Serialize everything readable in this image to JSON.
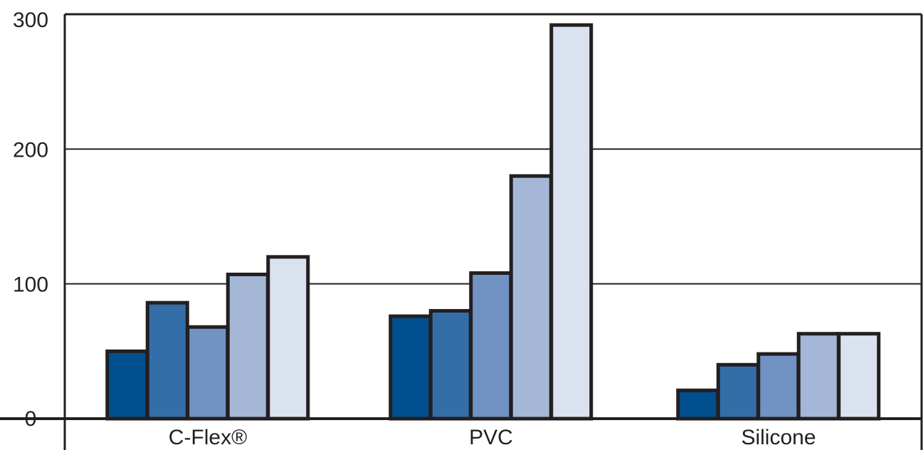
{
  "chart_data": {
    "type": "bar",
    "title": "",
    "xlabel": "",
    "ylabel": "",
    "categories": [
      "C-Flex®",
      "PVC",
      "Silicone"
    ],
    "ylim": [
      0,
      300
    ],
    "yticks": [
      0,
      100,
      200,
      300
    ],
    "grid": true,
    "series": [
      {
        "values": [
          50,
          76,
          21
        ],
        "color": "#00508f"
      },
      {
        "values": [
          86,
          80,
          40
        ],
        "color": "#346ea8"
      },
      {
        "values": [
          68,
          108,
          48
        ],
        "color": "#7193c3"
      },
      {
        "values": [
          107,
          180,
          63
        ],
        "color": "#a4b7d7"
      },
      {
        "values": [
          120,
          292,
          63
        ],
        "color": "#dae1ef"
      }
    ]
  }
}
